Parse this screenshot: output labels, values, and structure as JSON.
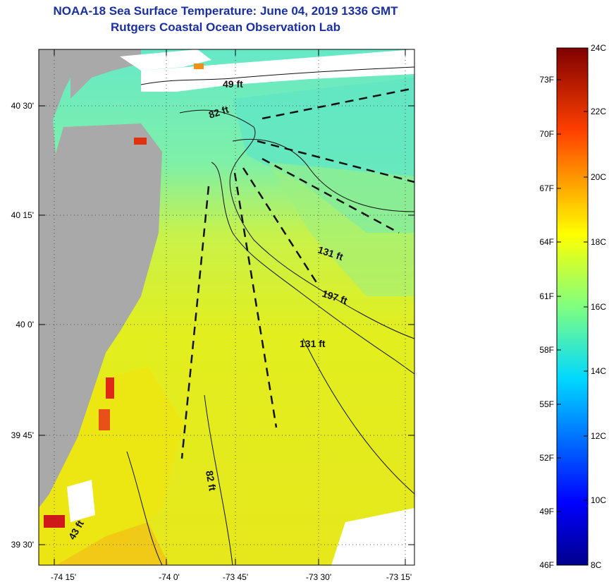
{
  "title": {
    "line1": "NOAA-18 Sea Surface Temperature:  June 04, 2019 1336 GMT",
    "line2": "Rutgers Coastal Ocean Observation Lab"
  },
  "map": {
    "lat_labels": [
      "40 30'",
      "40 15'",
      "40 0'",
      "39 45'",
      "39 30'"
    ],
    "lon_labels": [
      "-74 15'",
      "-74 0'",
      "-73 45'",
      "-73 30'",
      "-73 15'"
    ],
    "depth_labels": [
      "49 ft",
      "82 ft",
      "131 ft",
      "197 ft",
      "131 ft",
      "82 ft",
      "43 ft"
    ]
  },
  "colorbar": {
    "fahrenheit_labels": [
      "73F",
      "70F",
      "67F",
      "64F",
      "61F",
      "58F",
      "55F",
      "52F",
      "49F",
      "46F"
    ],
    "celsius_labels": [
      "24C",
      "22C",
      "20C",
      "18C",
      "16C",
      "14C",
      "12C",
      "10C",
      "8C"
    ]
  },
  "colors": {
    "title": "#1a2fa0",
    "land": "#a9a9a9",
    "cloud": "#ffffff",
    "warm_sst": "#e8e818",
    "cool_sst": "#55e0b8"
  }
}
